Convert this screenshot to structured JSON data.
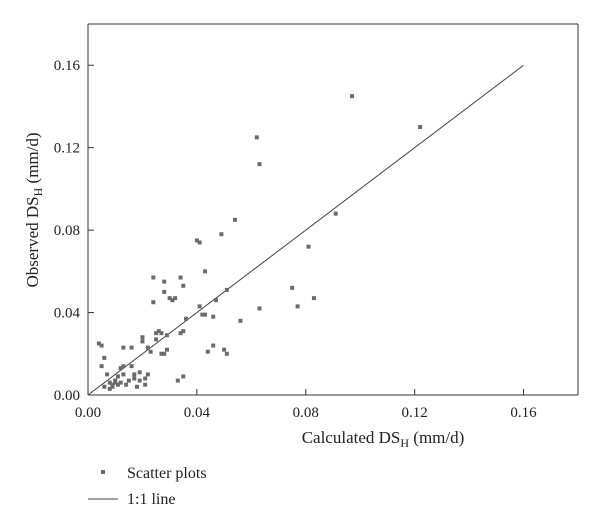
{
  "chart_data": {
    "type": "scatter",
    "xlabel": {
      "main": "Calculated DS",
      "sub": "H",
      "unit": " (mm/d)"
    },
    "ylabel": {
      "main": "Observed DS",
      "sub": "H",
      "unit": " (mm/d)"
    },
    "xlim": [
      0,
      0.18
    ],
    "ylim": [
      0,
      0.18
    ],
    "xticks": [
      0.0,
      0.04,
      0.08,
      0.12,
      0.16
    ],
    "yticks": [
      0.0,
      0.04,
      0.08,
      0.12,
      0.16
    ],
    "tick_format": "0.00",
    "legend_position": "bottom-left",
    "series": [
      {
        "name": "Scatter plots",
        "kind": "scatter",
        "color": "#6b6b6b",
        "points": [
          [
            0.004,
            0.025
          ],
          [
            0.005,
            0.024
          ],
          [
            0.005,
            0.014
          ],
          [
            0.006,
            0.018
          ],
          [
            0.006,
            0.004
          ],
          [
            0.007,
            0.01
          ],
          [
            0.008,
            0.003
          ],
          [
            0.008,
            0.006
          ],
          [
            0.009,
            0.004
          ],
          [
            0.009,
            0.005
          ],
          [
            0.01,
            0.006
          ],
          [
            0.01,
            0.007
          ],
          [
            0.011,
            0.005
          ],
          [
            0.011,
            0.009
          ],
          [
            0.012,
            0.006
          ],
          [
            0.012,
            0.013
          ],
          [
            0.013,
            0.014
          ],
          [
            0.013,
            0.01
          ],
          [
            0.013,
            0.023
          ],
          [
            0.014,
            0.005
          ],
          [
            0.015,
            0.007
          ],
          [
            0.016,
            0.014
          ],
          [
            0.016,
            0.023
          ],
          [
            0.017,
            0.01
          ],
          [
            0.017,
            0.008
          ],
          [
            0.018,
            0.004
          ],
          [
            0.019,
            0.007
          ],
          [
            0.019,
            0.011
          ],
          [
            0.02,
            0.026
          ],
          [
            0.02,
            0.028
          ],
          [
            0.021,
            0.008
          ],
          [
            0.021,
            0.005
          ],
          [
            0.022,
            0.023
          ],
          [
            0.022,
            0.01
          ],
          [
            0.023,
            0.021
          ],
          [
            0.024,
            0.045
          ],
          [
            0.024,
            0.057
          ],
          [
            0.025,
            0.03
          ],
          [
            0.025,
            0.027
          ],
          [
            0.026,
            0.031
          ],
          [
            0.027,
            0.02
          ],
          [
            0.027,
            0.03
          ],
          [
            0.028,
            0.02
          ],
          [
            0.028,
            0.05
          ],
          [
            0.028,
            0.055
          ],
          [
            0.029,
            0.022
          ],
          [
            0.029,
            0.029
          ],
          [
            0.03,
            0.047
          ],
          [
            0.031,
            0.046
          ],
          [
            0.032,
            0.047
          ],
          [
            0.033,
            0.007
          ],
          [
            0.034,
            0.03
          ],
          [
            0.034,
            0.057
          ],
          [
            0.035,
            0.009
          ],
          [
            0.035,
            0.031
          ],
          [
            0.035,
            0.053
          ],
          [
            0.036,
            0.037
          ],
          [
            0.04,
            0.075
          ],
          [
            0.041,
            0.074
          ],
          [
            0.041,
            0.043
          ],
          [
            0.042,
            0.039
          ],
          [
            0.043,
            0.039
          ],
          [
            0.043,
            0.06
          ],
          [
            0.044,
            0.021
          ],
          [
            0.046,
            0.038
          ],
          [
            0.046,
            0.024
          ],
          [
            0.047,
            0.046
          ],
          [
            0.049,
            0.078
          ],
          [
            0.05,
            0.022
          ],
          [
            0.051,
            0.051
          ],
          [
            0.051,
            0.02
          ],
          [
            0.054,
            0.085
          ],
          [
            0.056,
            0.036
          ],
          [
            0.062,
            0.125
          ],
          [
            0.063,
            0.112
          ],
          [
            0.063,
            0.042
          ],
          [
            0.075,
            0.052
          ],
          [
            0.077,
            0.043
          ],
          [
            0.081,
            0.072
          ],
          [
            0.083,
            0.047
          ],
          [
            0.091,
            0.088
          ],
          [
            0.097,
            0.145
          ],
          [
            0.122,
            0.13
          ]
        ]
      },
      {
        "name": "1:1 line",
        "kind": "line",
        "color": "#444444",
        "points": [
          [
            0.0,
            0.0
          ],
          [
            0.16,
            0.16
          ]
        ]
      }
    ]
  }
}
